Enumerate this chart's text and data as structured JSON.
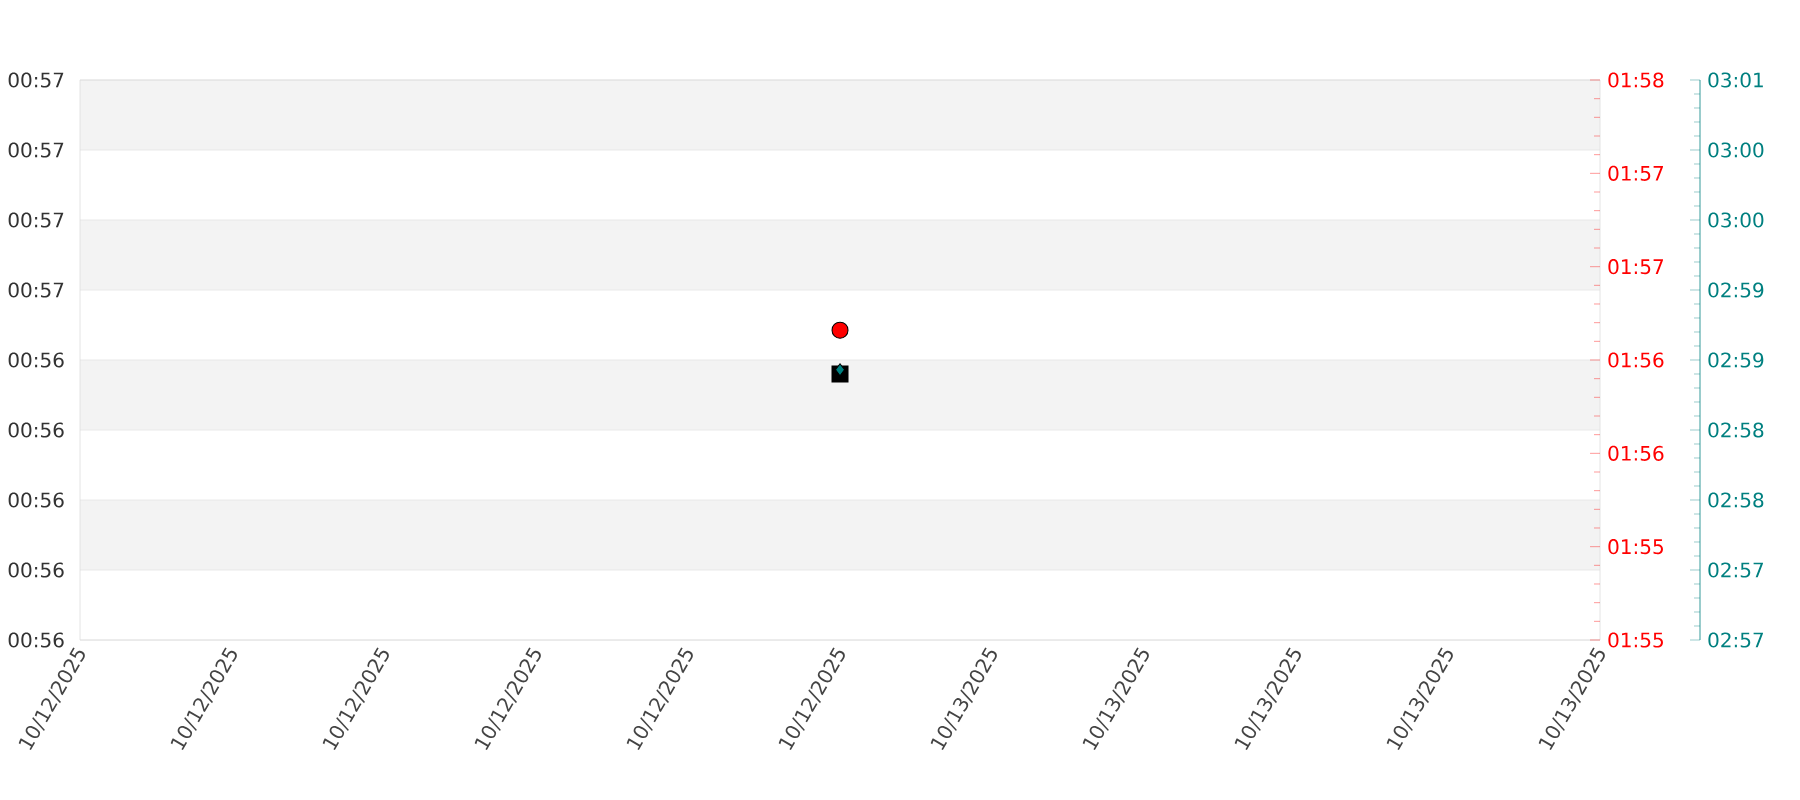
{
  "chart_data": {
    "type": "scatter",
    "xlim": [
      "2025-10-12T00:00",
      "2025-10-13T16:00"
    ],
    "xticks": [
      {
        "value": "2025-10-12T00:00",
        "label": "10/12/2025"
      },
      {
        "value": "2025-10-12T04:00",
        "label": "10/12/2025"
      },
      {
        "value": "2025-10-12T08:00",
        "label": "10/12/2025"
      },
      {
        "value": "2025-10-12T12:00",
        "label": "10/12/2025"
      },
      {
        "value": "2025-10-12T16:00",
        "label": "10/12/2025"
      },
      {
        "value": "2025-10-12T20:00",
        "label": "10/12/2025"
      },
      {
        "value": "2025-10-13T00:00",
        "label": "10/13/2025"
      },
      {
        "value": "2025-10-13T04:00",
        "label": "10/13/2025"
      },
      {
        "value": "2025-10-13T08:00",
        "label": "10/13/2025"
      },
      {
        "value": "2025-10-13T12:00",
        "label": "10/13/2025"
      },
      {
        "value": "2025-10-13T16:00",
        "label": "10/13/2025"
      }
    ],
    "ylim": [
      55.6,
      57.2
    ],
    "yticks": [
      {
        "value": 55.6,
        "label": "00:56"
      },
      {
        "value": 55.8,
        "label": "00:56"
      },
      {
        "value": 56.0,
        "label": "00:56"
      },
      {
        "value": 56.2,
        "label": "00:56"
      },
      {
        "value": 56.4,
        "label": "00:56"
      },
      {
        "value": 56.6,
        "label": "00:57"
      },
      {
        "value": 56.8,
        "label": "00:57"
      },
      {
        "value": 57.0,
        "label": "00:57"
      },
      {
        "value": 57.2,
        "label": "00:57"
      }
    ],
    "y2lim": [
      114.75,
      117.75
    ],
    "y2ticks": [
      {
        "value": 114.75,
        "label": "01:55"
      },
      {
        "value": 115.25,
        "label": "01:55"
      },
      {
        "value": 115.75,
        "label": "01:56"
      },
      {
        "value": 116.25,
        "label": "01:56"
      },
      {
        "value": 116.75,
        "label": "01:57"
      },
      {
        "value": 117.25,
        "label": "01:57"
      },
      {
        "value": 117.75,
        "label": "01:58"
      }
    ],
    "y3lim": [
      176.75,
      180.75
    ],
    "y3ticks": [
      {
        "value": 176.75,
        "label": "02:57"
      },
      {
        "value": 177.25,
        "label": "02:57"
      },
      {
        "value": 177.75,
        "label": "02:58"
      },
      {
        "value": 178.25,
        "label": "02:58"
      },
      {
        "value": 178.75,
        "label": "02:59"
      },
      {
        "value": 179.25,
        "label": "02:59"
      },
      {
        "value": 179.75,
        "label": "03:00"
      },
      {
        "value": 180.25,
        "label": "03:00"
      },
      {
        "value": 180.75,
        "label": "03:01"
      }
    ],
    "grid": "y",
    "bands": [
      {
        "axis": "y",
        "from": 57.0,
        "to": 57.2,
        "color": "#f3f3f3"
      },
      {
        "axis": "y",
        "from": 56.6,
        "to": 56.8,
        "color": "#f3f3f3"
      },
      {
        "axis": "y",
        "from": 56.2,
        "to": 56.4,
        "color": "#f3f3f3"
      },
      {
        "axis": "y",
        "from": 55.8,
        "to": 56.0,
        "color": "#f3f3f3"
      }
    ],
    "series": [
      {
        "color": "#000000",
        "marker": "square",
        "x": [
          "2025-10-12T20:00"
        ],
        "values": [
          56.36
        ]
      },
      {
        "color": "#ff0000",
        "marker": "circle",
        "axis": "y2",
        "x": [
          "2025-10-12T20:00"
        ],
        "values": [
          116.41
        ]
      },
      {
        "color": "#008080",
        "marker": "diamond",
        "axis": "y3",
        "x": [
          "2025-10-12T20:00"
        ],
        "values": [
          178.68
        ]
      }
    ]
  }
}
